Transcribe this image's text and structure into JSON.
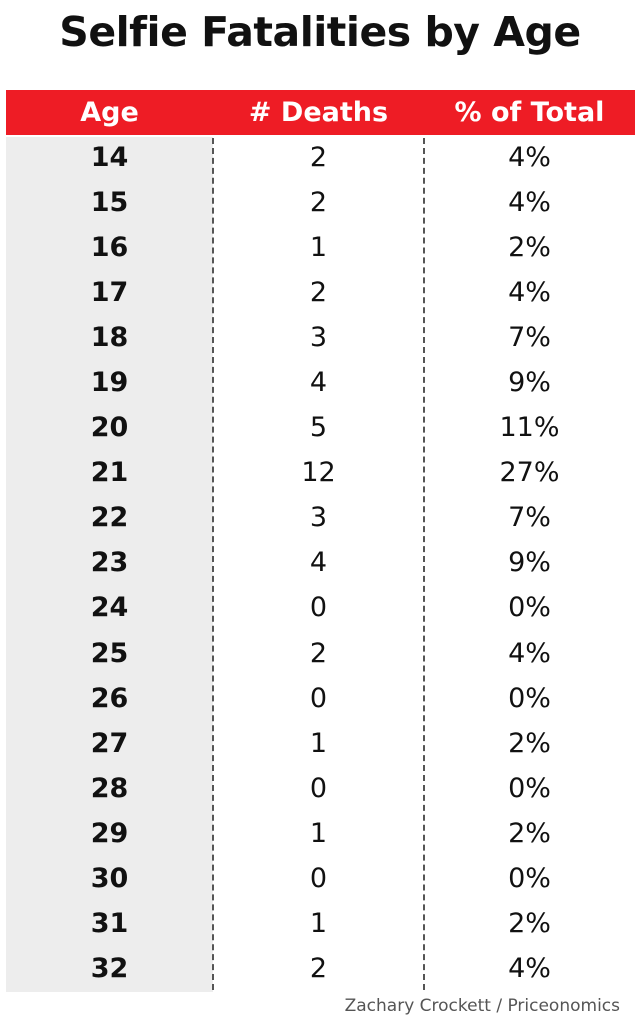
{
  "chart_data": {
    "type": "table",
    "title": "Selfie Fatalities by Age",
    "columns": [
      "Age",
      "# Deaths",
      "% of Total"
    ],
    "rows": [
      [
        "14",
        "2",
        "4%"
      ],
      [
        "15",
        "2",
        "4%"
      ],
      [
        "16",
        "1",
        "2%"
      ],
      [
        "17",
        "2",
        "4%"
      ],
      [
        "18",
        "3",
        "7%"
      ],
      [
        "19",
        "4",
        "9%"
      ],
      [
        "20",
        "5",
        "11%"
      ],
      [
        "21",
        "12",
        "27%"
      ],
      [
        "22",
        "3",
        "7%"
      ],
      [
        "23",
        "4",
        "9%"
      ],
      [
        "24",
        "0",
        "0%"
      ],
      [
        "25",
        "2",
        "4%"
      ],
      [
        "26",
        "0",
        "0%"
      ],
      [
        "27",
        "1",
        "2%"
      ],
      [
        "28",
        "0",
        "0%"
      ],
      [
        "29",
        "1",
        "2%"
      ],
      [
        "30",
        "0",
        "0%"
      ],
      [
        "31",
        "1",
        "2%"
      ],
      [
        "32",
        "2",
        "4%"
      ]
    ],
    "header_color": "#ee1c25"
  },
  "credit": "Zachary Crockett / Priceonomics"
}
